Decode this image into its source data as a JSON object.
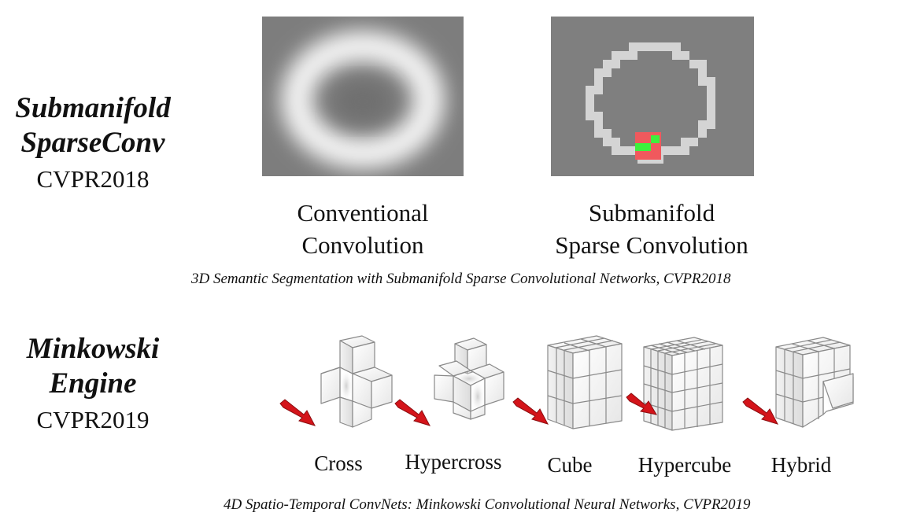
{
  "section1": {
    "title_line1": "Submanifold",
    "title_line2": "SparseConv",
    "venue": "CVPR2018",
    "captions": {
      "conventional_line1": "Conventional",
      "conventional_line2": "Convolution",
      "submanifold_line1": "Submanifold",
      "submanifold_line2": "Sparse Convolution"
    },
    "reference": "3D Semantic Segmentation with Submanifold Sparse Convolutional Networks, CVPR2018"
  },
  "section2": {
    "title_line1": "Minkowski",
    "title_line2": "Engine",
    "venue": "CVPR2019",
    "shapes": [
      "Cross",
      "Hypercross",
      "Cube",
      "Hypercube",
      "Hybrid"
    ],
    "reference": "4D Spatio-Temporal ConvNets: Minkowski Convolutional Neural Networks, CVPR2019"
  },
  "colors": {
    "panel_gray": "#7f7f7f",
    "ring_light": "#d4d4d4",
    "kernel_red": "#f0595d",
    "active_green": "#3df03d",
    "arrow_red": "#d4141a"
  }
}
